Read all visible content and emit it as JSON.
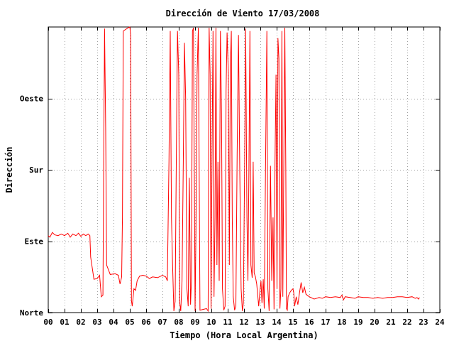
{
  "chart_data": {
    "type": "line",
    "title": "Dirección de Viento 17/03/2008",
    "xlabel": "Tiempo (Hora Local Argentina)",
    "ylabel": "Dirección",
    "xlim": [
      0,
      24
    ],
    "ylim": [
      0,
      360
    ],
    "x_ticks": [
      "00",
      "01",
      "02",
      "03",
      "04",
      "05",
      "06",
      "07",
      "08",
      "09",
      "10",
      "11",
      "12",
      "13",
      "14",
      "15",
      "16",
      "17",
      "18",
      "19",
      "20",
      "21",
      "22",
      "23",
      "24"
    ],
    "y_ticks": [
      {
        "value": 0,
        "label": "Norte"
      },
      {
        "value": 90,
        "label": "Este"
      },
      {
        "value": 180,
        "label": "Sur"
      },
      {
        "value": 270,
        "label": "Oeste"
      }
    ],
    "grid": true,
    "colors": {
      "series": "#ff0000",
      "grid": "#a0a0a0",
      "axes": "#000000"
    },
    "series": [
      {
        "values": [
          [
            0.0,
            97
          ],
          [
            0.1,
            95
          ],
          [
            0.25,
            101
          ],
          [
            0.4,
            98
          ],
          [
            0.6,
            97
          ],
          [
            0.8,
            99
          ],
          [
            1.0,
            97
          ],
          [
            1.2,
            100
          ],
          [
            1.35,
            95
          ],
          [
            1.5,
            99
          ],
          [
            1.7,
            97
          ],
          [
            1.85,
            100
          ],
          [
            2.0,
            96
          ],
          [
            2.15,
            99
          ],
          [
            2.3,
            97
          ],
          [
            2.45,
            99
          ],
          [
            2.55,
            97
          ],
          [
            2.6,
            70
          ],
          [
            2.8,
            42
          ],
          [
            3.0,
            43
          ],
          [
            3.15,
            47
          ],
          [
            3.25,
            20
          ],
          [
            3.35,
            22
          ],
          [
            3.4,
            190
          ],
          [
            3.45,
            358
          ],
          [
            3.52,
            230
          ],
          [
            3.58,
            60
          ],
          [
            3.8,
            48
          ],
          [
            4.1,
            49
          ],
          [
            4.3,
            47
          ],
          [
            4.4,
            36
          ],
          [
            4.5,
            45
          ],
          [
            4.55,
            120
          ],
          [
            4.6,
            355
          ],
          [
            4.9,
            359
          ],
          [
            5.0,
            360
          ],
          [
            5.05,
            350
          ],
          [
            5.1,
            15
          ],
          [
            5.15,
            8
          ],
          [
            5.25,
            30
          ],
          [
            5.35,
            28
          ],
          [
            5.45,
            40
          ],
          [
            5.6,
            46
          ],
          [
            5.8,
            47
          ],
          [
            6.0,
            46
          ],
          [
            6.2,
            43
          ],
          [
            6.4,
            45
          ],
          [
            6.7,
            44
          ],
          [
            7.0,
            47
          ],
          [
            7.2,
            45
          ],
          [
            7.3,
            40
          ],
          [
            7.4,
            190
          ],
          [
            7.48,
            355
          ],
          [
            7.55,
            120
          ],
          [
            7.62,
            60
          ],
          [
            7.7,
            2
          ],
          [
            7.78,
            14
          ],
          [
            7.85,
            200
          ],
          [
            7.92,
            355
          ],
          [
            8.0,
            300
          ],
          [
            8.06,
            12
          ],
          [
            8.12,
            2
          ],
          [
            8.2,
            40
          ],
          [
            8.28,
            190
          ],
          [
            8.35,
            340
          ],
          [
            8.42,
            270
          ],
          [
            8.5,
            30
          ],
          [
            8.58,
            8
          ],
          [
            8.65,
            170
          ],
          [
            8.72,
            10
          ],
          [
            8.78,
            40
          ],
          [
            8.84,
            355
          ],
          [
            8.9,
            359
          ],
          [
            8.96,
            150
          ],
          [
            9.0,
            2
          ],
          [
            9.05,
            100
          ],
          [
            9.12,
            300
          ],
          [
            9.2,
            359
          ],
          [
            9.3,
            3
          ],
          [
            9.5,
            4
          ],
          [
            9.7,
            5
          ],
          [
            9.8,
            2
          ],
          [
            9.86,
            359
          ],
          [
            9.92,
            300
          ],
          [
            9.98,
            5
          ],
          [
            10.04,
            200
          ],
          [
            10.1,
            355
          ],
          [
            10.16,
            20
          ],
          [
            10.22,
            120
          ],
          [
            10.28,
            359
          ],
          [
            10.34,
            60
          ],
          [
            10.4,
            190
          ],
          [
            10.48,
            40
          ],
          [
            10.55,
            355
          ],
          [
            10.62,
            250
          ],
          [
            10.68,
            30
          ],
          [
            10.76,
            3
          ],
          [
            10.84,
            8
          ],
          [
            10.9,
            280
          ],
          [
            10.96,
            353
          ],
          [
            11.04,
            300
          ],
          [
            11.1,
            60
          ],
          [
            11.16,
            310
          ],
          [
            11.22,
            355
          ],
          [
            11.28,
            120
          ],
          [
            11.34,
            20
          ],
          [
            11.42,
            3
          ],
          [
            11.5,
            8
          ],
          [
            11.58,
            200
          ],
          [
            11.66,
            350
          ],
          [
            11.74,
            180
          ],
          [
            11.82,
            30
          ],
          [
            11.9,
            2
          ],
          [
            11.96,
            12
          ],
          [
            12.04,
            190
          ],
          [
            12.1,
            358
          ],
          [
            12.18,
            120
          ],
          [
            12.24,
            40
          ],
          [
            12.3,
            180
          ],
          [
            12.36,
            355
          ],
          [
            12.42,
            60
          ],
          [
            12.5,
            44
          ],
          [
            12.56,
            190
          ],
          [
            12.62,
            50
          ],
          [
            12.7,
            45
          ],
          [
            12.78,
            36
          ],
          [
            12.84,
            22
          ],
          [
            12.9,
            8
          ],
          [
            12.98,
            28
          ],
          [
            13.04,
            40
          ],
          [
            13.1,
            12
          ],
          [
            13.18,
            42
          ],
          [
            13.24,
            5
          ],
          [
            13.32,
            190
          ],
          [
            13.4,
            355
          ],
          [
            13.46,
            30
          ],
          [
            13.54,
            2
          ],
          [
            13.62,
            185
          ],
          [
            13.7,
            40
          ],
          [
            13.78,
            120
          ],
          [
            13.84,
            4
          ],
          [
            13.9,
            190
          ],
          [
            13.96,
            300
          ],
          [
            14.02,
            30
          ],
          [
            14.08,
            346
          ],
          [
            14.14,
            320
          ],
          [
            14.2,
            5
          ],
          [
            14.26,
            30
          ],
          [
            14.32,
            355
          ],
          [
            14.38,
            20
          ],
          [
            14.44,
            190
          ],
          [
            14.5,
            359
          ],
          [
            14.56,
            180
          ],
          [
            14.6,
            5
          ],
          [
            14.65,
            3
          ],
          [
            14.7,
            20
          ],
          [
            14.8,
            25
          ],
          [
            14.9,
            28
          ],
          [
            15.0,
            30
          ],
          [
            15.05,
            25
          ],
          [
            15.1,
            8
          ],
          [
            15.2,
            20
          ],
          [
            15.3,
            10
          ],
          [
            15.4,
            25
          ],
          [
            15.5,
            38
          ],
          [
            15.6,
            25
          ],
          [
            15.7,
            32
          ],
          [
            15.8,
            23
          ],
          [
            16.0,
            20
          ],
          [
            16.3,
            17
          ],
          [
            16.6,
            19
          ],
          [
            16.8,
            18
          ],
          [
            17.0,
            20
          ],
          [
            17.3,
            19
          ],
          [
            17.6,
            20
          ],
          [
            17.9,
            19
          ],
          [
            18.0,
            22
          ],
          [
            18.1,
            16
          ],
          [
            18.2,
            20
          ],
          [
            18.5,
            19
          ],
          [
            18.8,
            18
          ],
          [
            19.0,
            20
          ],
          [
            19.3,
            19
          ],
          [
            19.6,
            19
          ],
          [
            19.9,
            18
          ],
          [
            20.2,
            19
          ],
          [
            20.5,
            18
          ],
          [
            20.8,
            19
          ],
          [
            21.1,
            19
          ],
          [
            21.4,
            20
          ],
          [
            21.7,
            20
          ],
          [
            22.0,
            19
          ],
          [
            22.3,
            20
          ],
          [
            22.5,
            18
          ],
          [
            22.6,
            19
          ],
          [
            22.7,
            17
          ],
          [
            22.75,
            19
          ]
        ]
      }
    ]
  }
}
